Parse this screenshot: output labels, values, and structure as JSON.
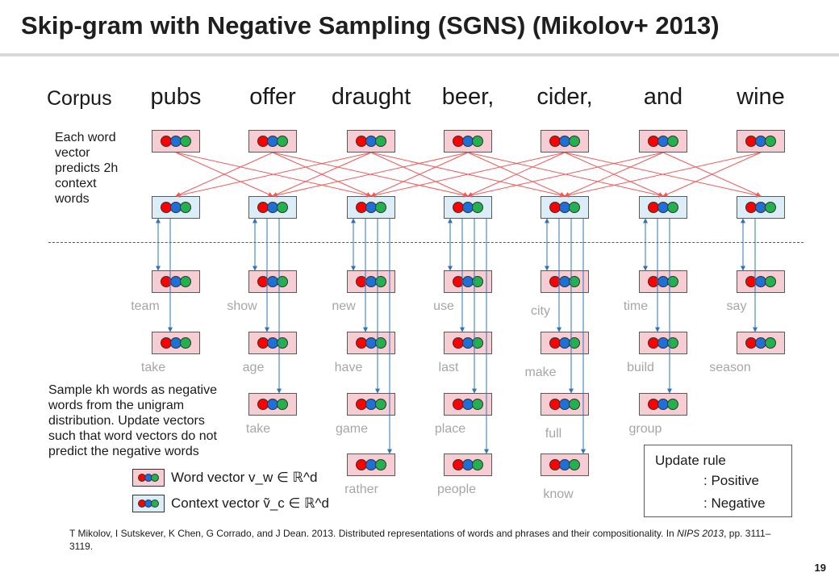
{
  "title": "Skip-gram with Negative Sampling (SGNS) (Mikolov+ 2013)",
  "corpus_label": "Corpus",
  "corpus_words": [
    "pubs",
    "offer",
    "draught",
    "beer,",
    "cider,",
    "and",
    "wine"
  ],
  "left_note": "Each word vector predicts 2h context words",
  "left_note_lines": [
    "Each word",
    "vector",
    "predicts 2h",
    "context",
    "words"
  ],
  "sample_note_lines": [
    "Sample kh words as negative",
    "words from the unigram",
    "distribution. Update vectors",
    "such that word vectors do not",
    "predict the negative words"
  ],
  "negative_columns": [
    {
      "words": [
        "team",
        "take"
      ]
    },
    {
      "words": [
        "show",
        "age",
        "take"
      ]
    },
    {
      "words": [
        "new",
        "have",
        "game",
        "rather"
      ]
    },
    {
      "words": [
        "use",
        "last",
        "place",
        "people"
      ]
    },
    {
      "words": [
        "city",
        "make",
        "full",
        "know"
      ]
    },
    {
      "words": [
        "time",
        "build",
        "group"
      ]
    },
    {
      "words": [
        "say",
        "season"
      ]
    }
  ],
  "legend": {
    "word_vector": "Word vector v_w ∈ ℝ^d",
    "context_vector": "Context vector ṽ_c ∈ ℝ^d"
  },
  "update_rule": {
    "title": "Update rule",
    "positive": ": Positive",
    "negative": ": Negative"
  },
  "reference": "T Mikolov, I Sutskever, K Chen, G Corrado, and J Dean. 2013. Distributed representations of words and phrases and their compositionality. In NIPS 2013, pp. 3111–3119.",
  "reference_plain": "T Mikolov, I Sutskever, K Chen, G Corrado, and J Dean. 2013. Distributed representations of words and phrases and their compositionality.  In ",
  "reference_venue": "NIPS 2013",
  "reference_pages": ", pp. 3111–3119.",
  "page_number": "19",
  "colors": {
    "positive": "#f05a5a",
    "negative": "#2f74b5",
    "word_box": "#f7cdd4",
    "context_box": "#dbeef8"
  }
}
